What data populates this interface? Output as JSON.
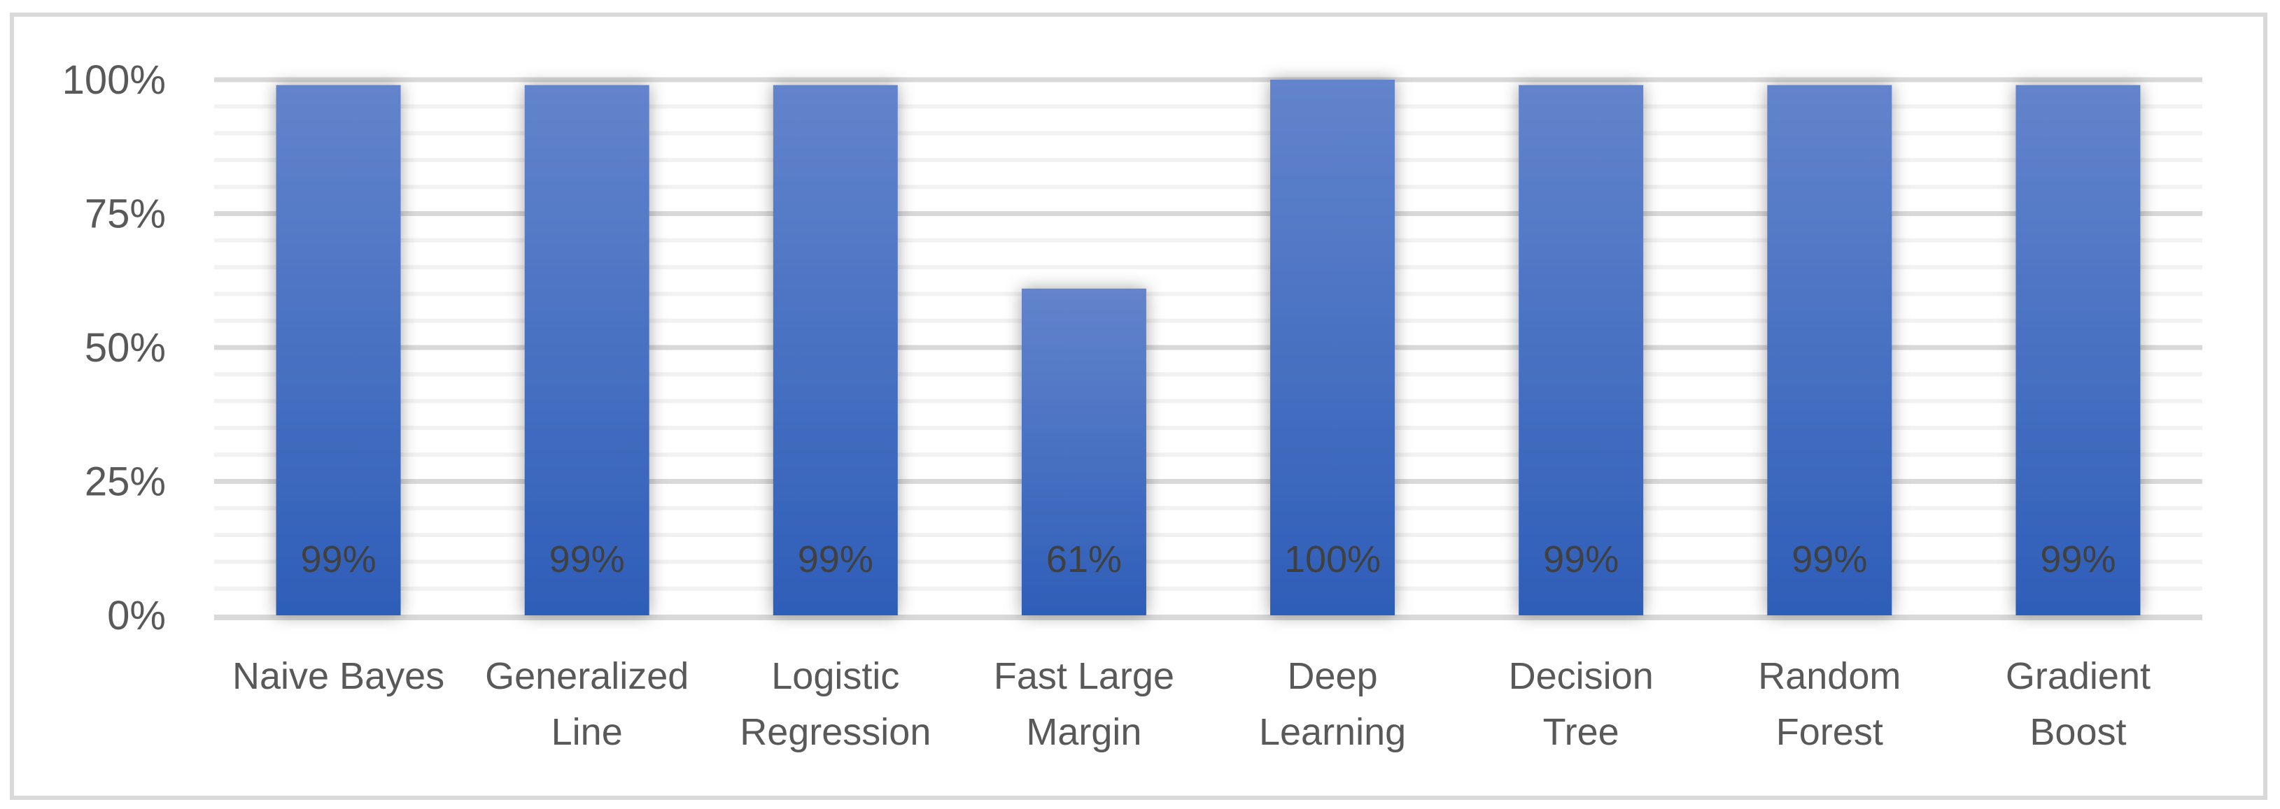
{
  "chart_data": {
    "type": "bar",
    "title": "",
    "xlabel": "",
    "ylabel": "",
    "categories": [
      [
        "Naive Bayes"
      ],
      [
        "Generalized",
        "Line"
      ],
      [
        "Logistic",
        "Regression"
      ],
      [
        "Fast Large",
        "Margin"
      ],
      [
        "Deep",
        "Learning"
      ],
      [
        "Decision",
        "Tree"
      ],
      [
        "Random",
        "Forest"
      ],
      [
        "Gradient",
        "Boost"
      ]
    ],
    "values": [
      99,
      99,
      99,
      61,
      100,
      99,
      99,
      99
    ],
    "data_labels": [
      "99%",
      "99%",
      "99%",
      "61%",
      "100%",
      "99%",
      "99%",
      "99%"
    ],
    "ylim": [
      0,
      100
    ],
    "yticks": [
      0,
      25,
      50,
      75,
      100
    ],
    "ytick_labels": [
      "0%",
      "25%",
      "50%",
      "75%",
      "100%"
    ],
    "minor_step": 5,
    "grid": true,
    "legend": "none",
    "colors": {
      "bar_top": "#6384CC",
      "bar_bottom": "#2E5EB8",
      "grid_major": "#D9D9D9",
      "grid_minor": "#F2F2F2",
      "text": "#595959",
      "label": "#404040",
      "frame": "#D9D9D9"
    }
  }
}
